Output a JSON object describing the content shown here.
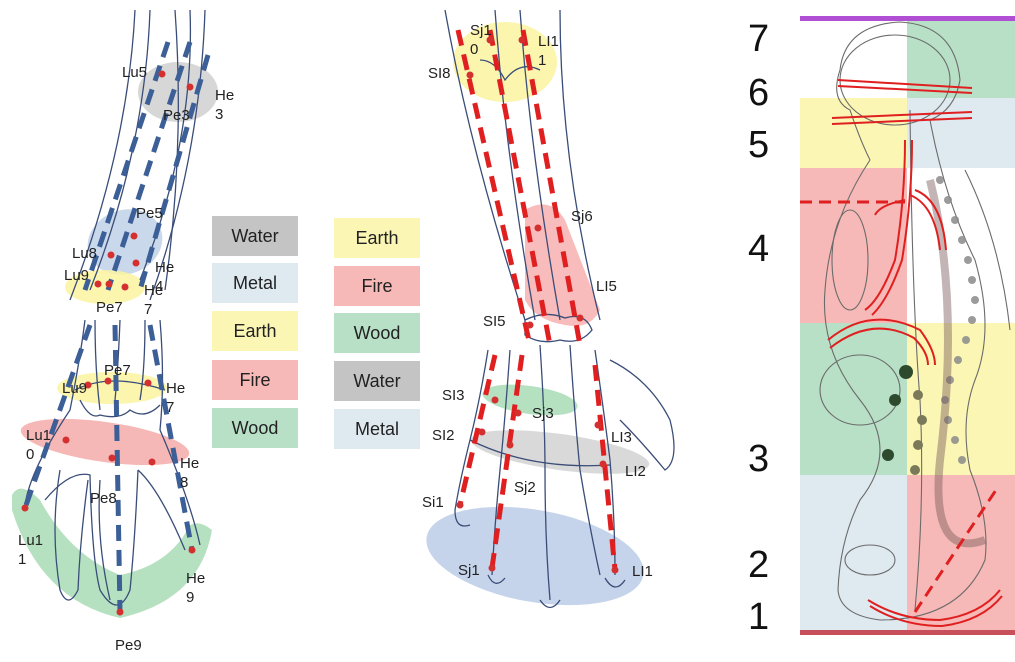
{
  "colors": {
    "water": "#c4c4c4",
    "metal": "#dfe9f0",
    "earth": "#fbf6b4",
    "fire": "#f6b9b7",
    "wood": "#b8e0c6",
    "meridian_blue": "#3b5f96",
    "meridian_red": "#e02020",
    "point_red": "#d43030",
    "bone_line": "#3a4d78",
    "top_bar": "#b14fd4",
    "bottom_bar": "#c8505a"
  },
  "legend_left": [
    "Water",
    "Metal",
    "Earth",
    "Fire",
    "Wood"
  ],
  "legend_right": [
    "Earth",
    "Fire",
    "Wood",
    "Water",
    "Metal"
  ],
  "palm_labels": {
    "lu5": "Lu5",
    "pe3": "Pe3",
    "he3": "He\n3",
    "pe5": "Pe5",
    "lu8": "Lu8",
    "lu9": "Lu9",
    "he4": "He\n4",
    "pe7a": "Pe7",
    "he7a": "He\n7",
    "pe7b": "Pe7",
    "lu9b": "Lu9",
    "he7b": "He\n7",
    "lu10": "Lu1\n0",
    "he8": "He\n8",
    "pe8": "Pe8",
    "lu11": "Lu1\n1",
    "he9": "He\n9",
    "pe9": "Pe9"
  },
  "back_labels": {
    "sj10": "Sj1\n0",
    "li11": "LI1\n1",
    "si8": "SI8",
    "sj6": "Sj6",
    "li5": "LI5",
    "si5": "SI5",
    "si3": "SI3",
    "sj3": "Sj3",
    "si2": "SI2",
    "li3": "LI3",
    "li2": "LI2",
    "sj2": "Sj2",
    "si1": "Si1",
    "sj1": "Sj1",
    "li1": "LI1"
  },
  "spine_scale": [
    "7",
    "6",
    "5",
    "4",
    "3",
    "2",
    "1"
  ]
}
